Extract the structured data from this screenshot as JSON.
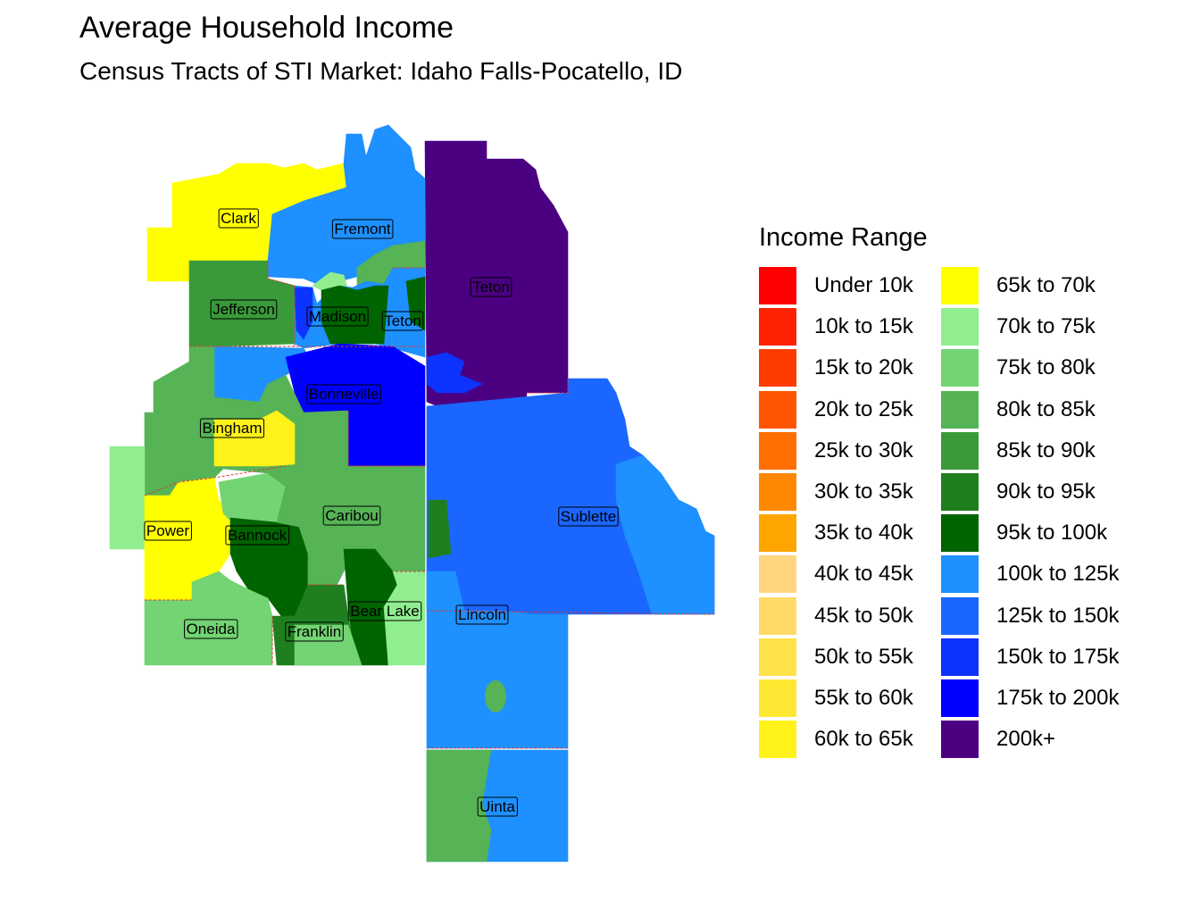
{
  "title": "Average Household Income",
  "subtitle": "Census Tracts of STI Market: Idaho Falls-Pocatello, ID",
  "legend": {
    "title": "Income Range",
    "items": [
      {
        "label": "Under 10k",
        "color": "#FF0000"
      },
      {
        "label": "10k to 15k",
        "color": "#FF2200"
      },
      {
        "label": "15k to 20k",
        "color": "#FF3C00"
      },
      {
        "label": "20k to 25k",
        "color": "#FF5500"
      },
      {
        "label": "25k to 30k",
        "color": "#FF6E00"
      },
      {
        "label": "30k to 35k",
        "color": "#FF8800"
      },
      {
        "label": "35k to 40k",
        "color": "#FFA500"
      },
      {
        "label": "40k to 45k",
        "color": "#FFD580"
      },
      {
        "label": "45k to 50k",
        "color": "#FFDA66"
      },
      {
        "label": "50k to 55k",
        "color": "#FFE14A"
      },
      {
        "label": "55k to 60k",
        "color": "#FFE833"
      },
      {
        "label": "60k to 65k",
        "color": "#FFF21A"
      },
      {
        "label": "65k to 70k",
        "color": "#FFFF00"
      },
      {
        "label": "70k to 75k",
        "color": "#90EE90"
      },
      {
        "label": "75k to 80k",
        "color": "#72D472"
      },
      {
        "label": "80k to 85k",
        "color": "#56B356"
      },
      {
        "label": "85k to 90k",
        "color": "#3A9A3A"
      },
      {
        "label": "90k to 95k",
        "color": "#1F7F1F"
      },
      {
        "label": "95k to 100k",
        "color": "#006400"
      },
      {
        "label": "100k to 125k",
        "color": "#1E90FF"
      },
      {
        "label": "125k to 150k",
        "color": "#1A66FF"
      },
      {
        "label": "150k to 175k",
        "color": "#0D33FF"
      },
      {
        "label": "175k to 200k",
        "color": "#0000FF"
      },
      {
        "label": "200k+",
        "color": "#4B0082"
      }
    ]
  },
  "counties": [
    {
      "name": "Clark",
      "income_range": "65k to 70k"
    },
    {
      "name": "Fremont",
      "income_range": "100k to 125k"
    },
    {
      "name": "Jefferson",
      "income_range": "85k to 90k"
    },
    {
      "name": "Madison",
      "income_range": "95k to 100k"
    },
    {
      "name": "Teton",
      "income_range": "100k to 125k"
    },
    {
      "name": "Teton",
      "income_range": "200k+"
    },
    {
      "name": "Bonneville",
      "income_range": "150k to 175k"
    },
    {
      "name": "Bingham",
      "income_range": "80k to 85k"
    },
    {
      "name": "Power",
      "income_range": "65k to 70k"
    },
    {
      "name": "Bannock",
      "income_range": "95k to 100k"
    },
    {
      "name": "Caribou",
      "income_range": "80k to 85k"
    },
    {
      "name": "Sublette",
      "income_range": "125k to 150k"
    },
    {
      "name": "Lincoln",
      "income_range": "100k to 125k"
    },
    {
      "name": "Oneida",
      "income_range": "75k to 80k"
    },
    {
      "name": "Franklin",
      "income_range": "90k to 95k"
    },
    {
      "name": "Bear Lake",
      "income_range": "70k to 75k"
    },
    {
      "name": "Uinta",
      "income_range": "100k to 125k"
    }
  ]
}
